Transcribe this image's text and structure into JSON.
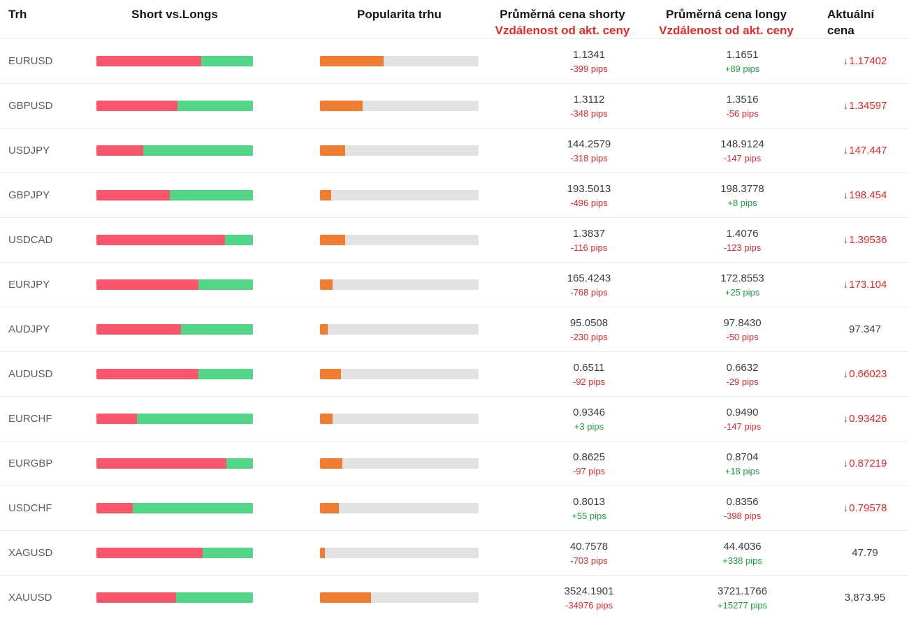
{
  "header": {
    "market": "Trh",
    "short_vs_longs": "Short vs.Longs",
    "popularity": "Popularita trhu",
    "avg_short_title": "Průměrná cena shorty",
    "avg_short_subtitle": "Vzdálenost od akt. ceny",
    "avg_long_title": "Průměrná cena longy",
    "avg_long_subtitle": "Vzdálenost od akt. ceny",
    "current_price": "Aktuální cena"
  },
  "colors": {
    "short_bar": "#f8566d",
    "long_bar": "#50d589",
    "popularity_bar": "#ee7d2f",
    "popularity_track": "#e2e2e2",
    "negative": "#e02a2a",
    "positive": "#1ba03c",
    "price_text": "#3d3d3d",
    "symbol_text": "#5d5d5d"
  },
  "chart_data": {
    "type": "table",
    "columns": [
      "Trh",
      "Short vs.Longs",
      "Popularita trhu",
      "Průměrná cena shorty / Vzdálenost od akt. ceny",
      "Průměrná cena longy / Vzdálenost od akt. ceny",
      "Aktuální cena"
    ],
    "rows": [
      {
        "symbol": "EURUSD",
        "short_pct": 67,
        "long_pct": 33,
        "popularity_pct": 40,
        "avg_short_price": "1.1341",
        "short_distance": "-399 pips",
        "avg_long_price": "1.1651",
        "long_distance": "+89 pips",
        "current_price": "1.17402",
        "price_direction": "down"
      },
      {
        "symbol": "GBPUSD",
        "short_pct": 52,
        "long_pct": 48,
        "popularity_pct": 27,
        "avg_short_price": "1.3112",
        "short_distance": "-348 pips",
        "avg_long_price": "1.3516",
        "long_distance": "-56 pips",
        "current_price": "1.34597",
        "price_direction": "down"
      },
      {
        "symbol": "USDJPY",
        "short_pct": 30,
        "long_pct": 70,
        "popularity_pct": 16,
        "avg_short_price": "144.2579",
        "short_distance": "-318 pips",
        "avg_long_price": "148.9124",
        "long_distance": "-147 pips",
        "current_price": "147.447",
        "price_direction": "down"
      },
      {
        "symbol": "GBPJPY",
        "short_pct": 47,
        "long_pct": 53,
        "popularity_pct": 7,
        "avg_short_price": "193.5013",
        "short_distance": "-496 pips",
        "avg_long_price": "198.3778",
        "long_distance": "+8 pips",
        "current_price": "198.454",
        "price_direction": "down"
      },
      {
        "symbol": "USDCAD",
        "short_pct": 82,
        "long_pct": 18,
        "popularity_pct": 16,
        "avg_short_price": "1.3837",
        "short_distance": "-116 pips",
        "avg_long_price": "1.4076",
        "long_distance": "-123 pips",
        "current_price": "1.39536",
        "price_direction": "down"
      },
      {
        "symbol": "EURJPY",
        "short_pct": 65,
        "long_pct": 35,
        "popularity_pct": 8,
        "avg_short_price": "165.4243",
        "short_distance": "-768 pips",
        "avg_long_price": "172.8553",
        "long_distance": "+25 pips",
        "current_price": "173.104",
        "price_direction": "down"
      },
      {
        "symbol": "AUDJPY",
        "short_pct": 54,
        "long_pct": 46,
        "popularity_pct": 5,
        "avg_short_price": "95.0508",
        "short_distance": "-230 pips",
        "avg_long_price": "97.8430",
        "long_distance": "-50 pips",
        "current_price": "97.347",
        "price_direction": "none"
      },
      {
        "symbol": "AUDUSD",
        "short_pct": 65,
        "long_pct": 35,
        "popularity_pct": 13,
        "avg_short_price": "0.6511",
        "short_distance": "-92 pips",
        "avg_long_price": "0.6632",
        "long_distance": "-29 pips",
        "current_price": "0.66023",
        "price_direction": "down"
      },
      {
        "symbol": "EURCHF",
        "short_pct": 26,
        "long_pct": 74,
        "popularity_pct": 8,
        "avg_short_price": "0.9346",
        "short_distance": "+3 pips",
        "avg_long_price": "0.9490",
        "long_distance": "-147 pips",
        "current_price": "0.93426",
        "price_direction": "down"
      },
      {
        "symbol": "EURGBP",
        "short_pct": 83,
        "long_pct": 17,
        "popularity_pct": 14,
        "avg_short_price": "0.8625",
        "short_distance": "-97 pips",
        "avg_long_price": "0.8704",
        "long_distance": "+18 pips",
        "current_price": "0.87219",
        "price_direction": "down"
      },
      {
        "symbol": "USDCHF",
        "short_pct": 23,
        "long_pct": 77,
        "popularity_pct": 12,
        "avg_short_price": "0.8013",
        "short_distance": "+55 pips",
        "avg_long_price": "0.8356",
        "long_distance": "-398 pips",
        "current_price": "0.79578",
        "price_direction": "down"
      },
      {
        "symbol": "XAGUSD",
        "short_pct": 68,
        "long_pct": 32,
        "popularity_pct": 3,
        "avg_short_price": "40.7578",
        "short_distance": "-703 pips",
        "avg_long_price": "44.4036",
        "long_distance": "+338 pips",
        "current_price": "47.79",
        "price_direction": "none"
      },
      {
        "symbol": "XAUUSD",
        "short_pct": 51,
        "long_pct": 49,
        "popularity_pct": 32,
        "avg_short_price": "3524.1901",
        "short_distance": "-34976 pips",
        "avg_long_price": "3721.1766",
        "long_distance": "+15277 pips",
        "current_price": "3,873.95",
        "price_direction": "none"
      }
    ]
  }
}
